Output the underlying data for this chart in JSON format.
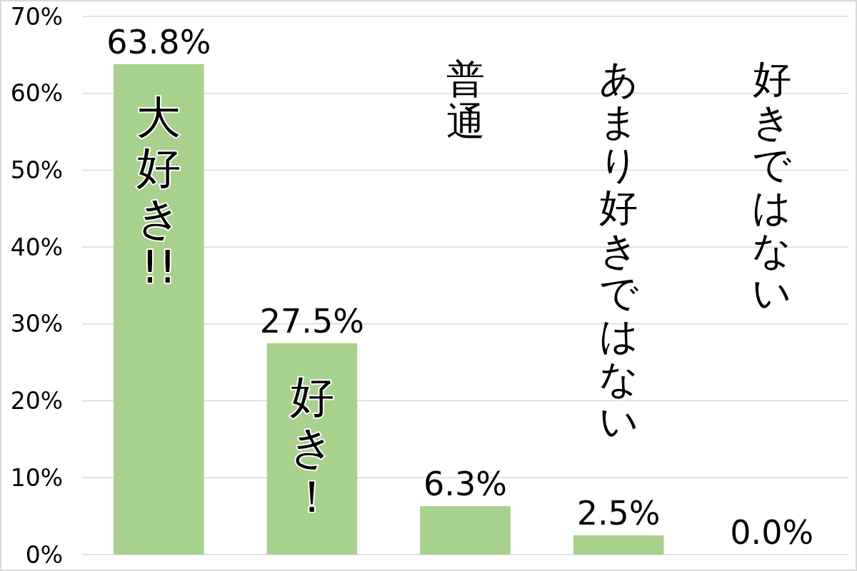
{
  "chart_data": {
    "type": "bar",
    "categories": [
      "大好き!!",
      "好き！",
      "普通",
      "あまり好きではない",
      "好きではない"
    ],
    "values": [
      63.8,
      27.5,
      6.3,
      2.5,
      0.0
    ],
    "color": "#a9d18e",
    "ylim": [
      0,
      70
    ],
    "yticks": [
      {
        "value": 0,
        "label": "0%"
      },
      {
        "value": 10,
        "label": "10%"
      },
      {
        "value": 20,
        "label": "20%"
      },
      {
        "value": 30,
        "label": "30%"
      },
      {
        "value": 40,
        "label": "40%"
      },
      {
        "value": 50,
        "label": "50%"
      },
      {
        "value": 60,
        "label": "60%"
      },
      {
        "value": 70,
        "label": "70%"
      }
    ],
    "grid": "y",
    "value_labels": [
      "63.8%",
      "27.5%",
      "6.3%",
      "2.5%",
      "0.0%"
    ]
  }
}
